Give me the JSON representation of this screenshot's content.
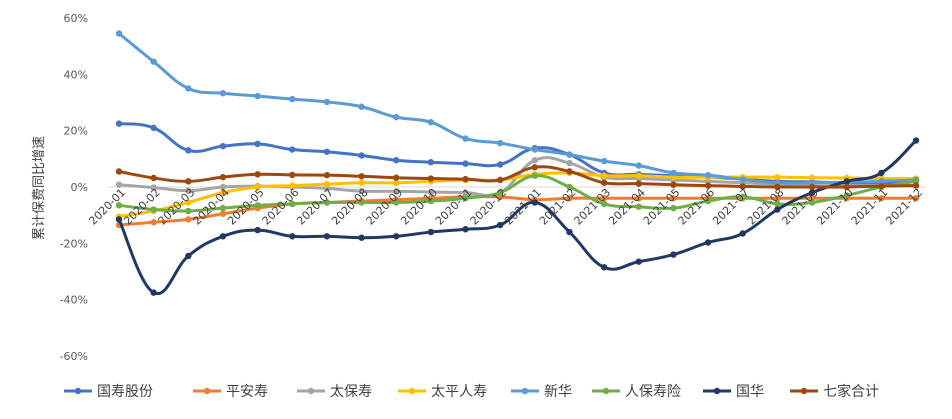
{
  "chart_data": {
    "type": "line",
    "title": "",
    "xlabel": "",
    "ylabel": "累计保费同比增速",
    "ylim": [
      -60,
      60
    ],
    "yticks": [
      60,
      40,
      20,
      0,
      -20,
      -40,
      -60
    ],
    "ytick_labels": [
      "60%",
      "40%",
      "20%",
      "0%",
      "-20%",
      "-40%",
      "-60%"
    ],
    "grid": false,
    "legend_position": "bottom",
    "categories": [
      "2020-01",
      "2020-02",
      "2020-03",
      "2020-04",
      "2020-05",
      "2020-06",
      "2020-07",
      "2020-08",
      "2020-09",
      "2020-10",
      "2020-11",
      "2020-12",
      "2021-01",
      "2021-02",
      "2021-03",
      "2021-04",
      "2021-05",
      "2021-06",
      "2021-07",
      "2021-08",
      "2021-09",
      "2021-10",
      "2021-11",
      "2021-12"
    ],
    "series": [
      {
        "name": "国寿股份",
        "color": "#4472C4",
        "values": [
          22.5,
          21,
          13,
          14.5,
          15.3,
          13.3,
          12.5,
          11.2,
          9.5,
          8.8,
          8.3,
          8,
          13.8,
          11.5,
          5,
          4.5,
          4,
          3.5,
          2.8,
          2,
          1.8,
          1.5,
          1.2,
          2.5
        ]
      },
      {
        "name": "平安寿",
        "color": "#ED7D31",
        "values": [
          -13.5,
          -12.5,
          -11.5,
          -9.5,
          -7.5,
          -6,
          -5.5,
          -5,
          -4.5,
          -4,
          -3.5,
          -3.5,
          -4.5,
          -4,
          -4,
          -4,
          -4,
          -4,
          -4,
          -4,
          -4,
          -4,
          -4,
          -4
        ]
      },
      {
        "name": "太保寿",
        "color": "#A5A5A5",
        "values": [
          0.8,
          -0.2,
          -1.3,
          0,
          0.3,
          0,
          -0.5,
          -1.5,
          -1.5,
          -1.8,
          -2,
          -2,
          9.5,
          8.5,
          3.5,
          3,
          2.5,
          2,
          1.5,
          1,
          0.5,
          0.5,
          0.5,
          0.5
        ]
      },
      {
        "name": "太平人寿",
        "color": "#FFC000",
        "values": [
          -10.5,
          -8.5,
          -5.5,
          -2,
          0,
          0.5,
          1,
          1.5,
          1.5,
          2,
          2.5,
          2.5,
          4.5,
          5,
          4,
          4,
          3.5,
          3.5,
          3.5,
          3.5,
          3.3,
          3.2,
          3,
          3
        ]
      },
      {
        "name": "新华",
        "color": "#5B9BD5",
        "values": [
          54.5,
          44.5,
          35,
          33.3,
          32.3,
          31.2,
          30.2,
          28.5,
          24.8,
          23,
          17.2,
          15.6,
          13.3,
          11.5,
          9.2,
          7.6,
          5,
          4.2,
          2.7,
          1.5,
          1.5,
          1.7,
          2,
          2.5
        ]
      },
      {
        "name": "人保寿险",
        "color": "#70AD47",
        "values": [
          -6.5,
          -8,
          -8.5,
          -7.5,
          -6.5,
          -6,
          -5.5,
          -5.5,
          -5.5,
          -5,
          -4,
          -2,
          4,
          0,
          -6,
          -7,
          -7.5,
          -5,
          -3.5,
          -6,
          -5.5,
          -3,
          0,
          2
        ]
      },
      {
        "name": "国华",
        "color": "#203864",
        "values": [
          -11.5,
          -37.5,
          -24.5,
          -17.5,
          -15.3,
          -17.5,
          -17.5,
          -18,
          -17.5,
          -16,
          -15,
          -13.5,
          -5.5,
          -16,
          -28.5,
          -26.5,
          -24,
          -19.7,
          -16.5,
          -8,
          -2,
          2,
          5,
          16.5
        ]
      },
      {
        "name": "七家合计",
        "color": "#9E480E",
        "values": [
          5.5,
          3.2,
          2,
          3.5,
          4.5,
          4.3,
          4.2,
          3.8,
          3.3,
          3,
          2.8,
          2.5,
          7,
          5.5,
          1.5,
          1.2,
          0.8,
          0.5,
          0.2,
          0,
          0,
          0,
          0.3,
          0.5
        ]
      }
    ]
  }
}
